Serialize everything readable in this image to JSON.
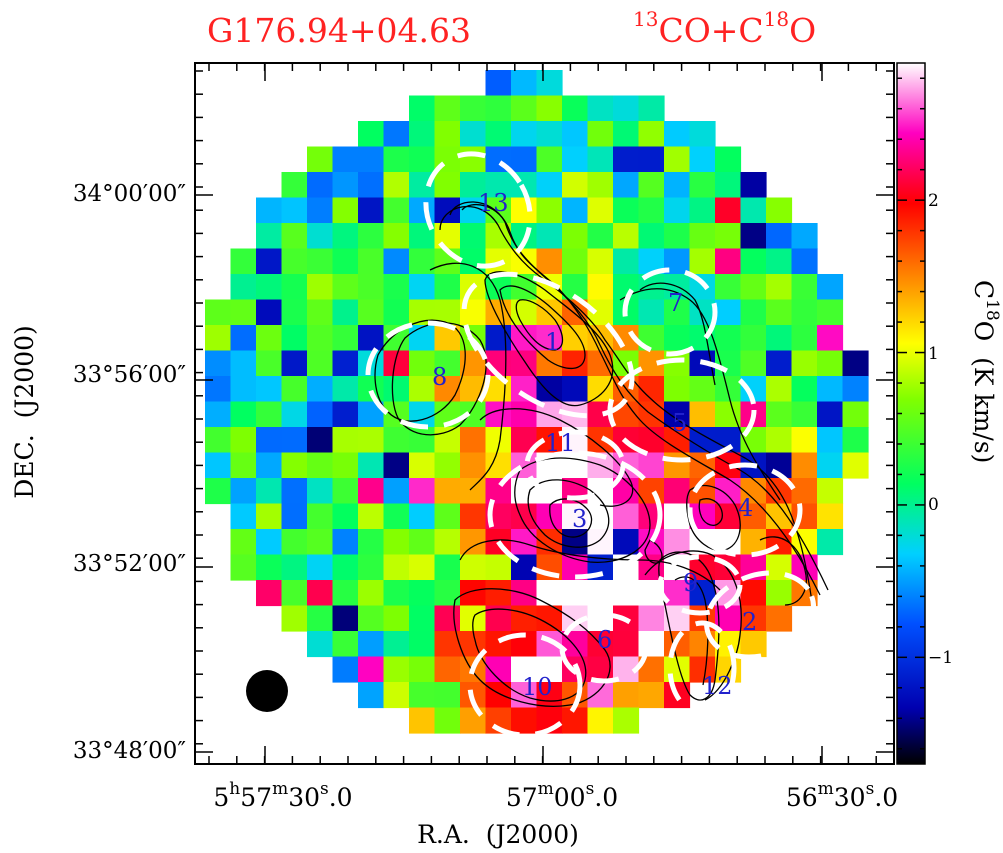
{
  "chart_data": {
    "type": "heatmap",
    "title": {
      "source": "G176.94+04.63",
      "tracer_iso1": "13",
      "tracer_mol1": "CO+C",
      "tracer_iso2": "18",
      "tracer_mol2": "O"
    },
    "xlabel": "R.A.  (J2000)",
    "ylabel": "DEC.  (J2000)",
    "x_ticks": [
      {
        "h": "5",
        "hu": "h",
        "m": "57",
        "mu": "m",
        "s": "30",
        "su": "s",
        "frac": ".0"
      },
      {
        "h": "",
        "hu": "",
        "m": "57",
        "mu": "m",
        "s": "00",
        "su": "s",
        "frac": ".0"
      },
      {
        "h": "",
        "hu": "",
        "m": "56",
        "mu": "m",
        "s": "30",
        "su": "s",
        "frac": ".0"
      }
    ],
    "y_ticks": [
      "34°00′00″",
      "33°56′00″",
      "33°52′00″",
      "33°48′00″"
    ],
    "colorbar": {
      "label_iso": "18",
      "label": "C   O  (K km/s)",
      "label_pre": "C",
      "label_post": "O  (K km/s)",
      "ticks": [
        "2",
        "1",
        "0",
        "−1"
      ],
      "tick_values": [
        2,
        1,
        0,
        -1
      ],
      "range": [
        -1.7,
        2.9
      ]
    },
    "cores": [
      "1",
      "2",
      "3",
      "4",
      "5",
      "6",
      "7",
      "8",
      "9",
      "10",
      "11",
      "12",
      "13"
    ],
    "colors": {
      "title": "#ff2222",
      "core_label": "#2222cc",
      "contour": "#000000",
      "ellipse": "#ffffff"
    }
  }
}
